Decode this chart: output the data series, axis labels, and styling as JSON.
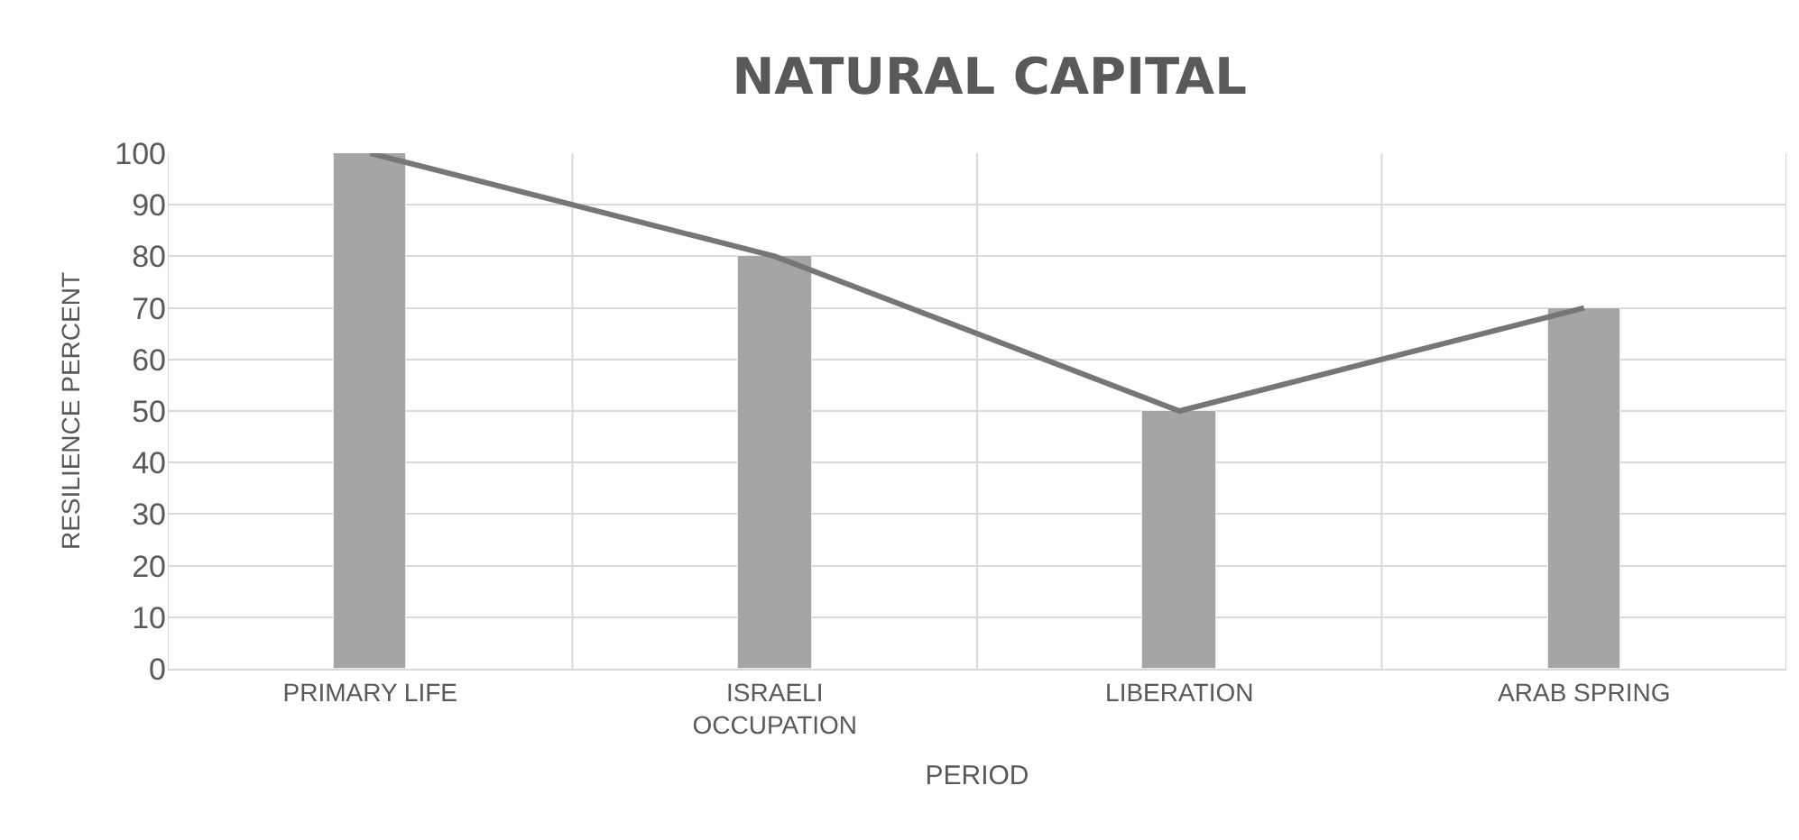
{
  "chart_data": {
    "type": "bar",
    "title": "NATURAL CAPITAL",
    "xlabel": "PERIOD",
    "ylabel": "RESILIENCE PERCENT",
    "categories": [
      "PRIMARY LIFE",
      "ISRAELI OCCUPATION",
      "LIBERATION",
      "ARAB SPRING"
    ],
    "series": [
      {
        "color": "#a5a5a5",
        "values": [
          100,
          80,
          50,
          70
        ]
      },
      {
        "type": "line",
        "color": "#767676",
        "values": [
          100,
          80,
          50,
          70
        ],
        "marker": "none",
        "line_style": "solid"
      }
    ],
    "ylim": [
      0,
      100
    ],
    "yticks": [
      0,
      10,
      20,
      30,
      40,
      50,
      60,
      70,
      80,
      90,
      100
    ],
    "grid": true
  }
}
